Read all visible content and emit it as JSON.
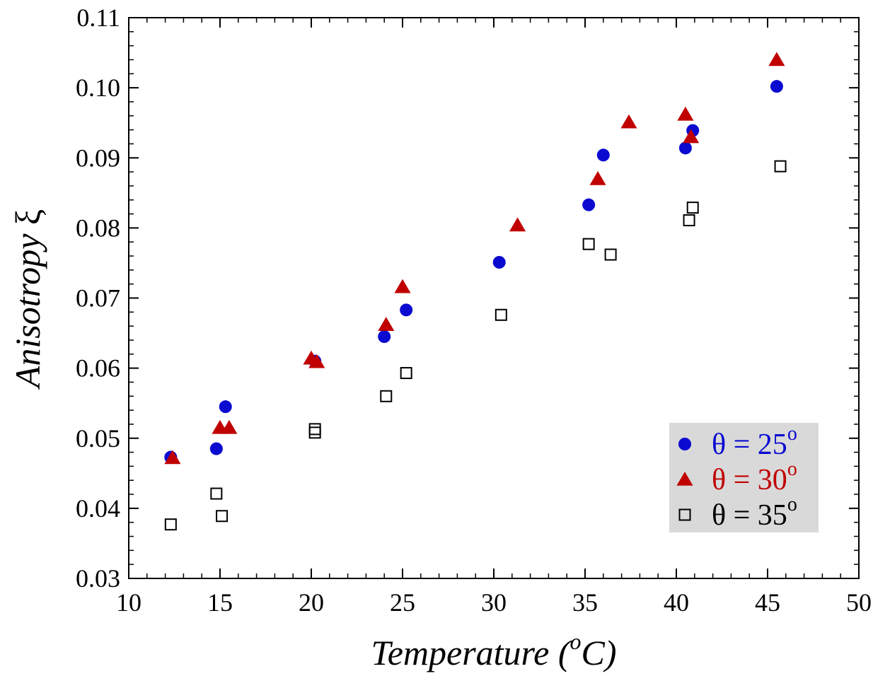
{
  "chart_data": {
    "type": "scatter",
    "xlabel": "Temperature (",
    "xlabel_sup": "o",
    "xlabel_tail": "C)",
    "ylabel": "Anisotropy",
    "ylabel_symbol": "ξ",
    "xlim": [
      10,
      50
    ],
    "ylim": [
      0.03,
      0.11
    ],
    "x_ticks": [
      "10",
      "15",
      "20",
      "25",
      "30",
      "35",
      "40",
      "45",
      "50"
    ],
    "y_ticks": [
      "0.03",
      "0.04",
      "0.05",
      "0.06",
      "0.07",
      "0.08",
      "0.09",
      "0.10",
      "0.11"
    ],
    "grid": false,
    "legend_position": "bottom-right",
    "legend_background": "#d9d9d9",
    "series": [
      {
        "name": "θ = 25",
        "name_sup": "o",
        "marker": "circle",
        "color": "#0a0ad0",
        "x": [
          12.3,
          14.8,
          15.3,
          20.2,
          24.0,
          25.2,
          30.3,
          35.2,
          36.0,
          40.5,
          40.9,
          45.5
        ],
        "y": [
          0.0473,
          0.0485,
          0.0545,
          0.061,
          0.0645,
          0.0683,
          0.0751,
          0.0833,
          0.0904,
          0.0914,
          0.0939,
          0.1002
        ]
      },
      {
        "name": "θ = 30",
        "name_sup": "o",
        "marker": "triangle",
        "color": "#c00000",
        "x": [
          12.4,
          15.0,
          15.5,
          20.0,
          20.3,
          24.1,
          25.0,
          31.3,
          35.7,
          37.4,
          40.5,
          40.8,
          45.5
        ],
        "y": [
          0.0472,
          0.0515,
          0.0515,
          0.0614,
          0.0609,
          0.0662,
          0.0716,
          0.0804,
          0.087,
          0.0951,
          0.0962,
          0.093,
          0.104
        ]
      },
      {
        "name": "θ = 35",
        "name_sup": "o",
        "marker": "square",
        "color": "#000000",
        "x": [
          12.3,
          14.8,
          15.1,
          20.2,
          20.2,
          24.1,
          25.2,
          30.4,
          35.2,
          36.4,
          40.7,
          40.9,
          45.7
        ],
        "y": [
          0.0377,
          0.0421,
          0.0389,
          0.0513,
          0.0508,
          0.056,
          0.0593,
          0.0676,
          0.0777,
          0.0762,
          0.0811,
          0.0829,
          0.0888
        ]
      }
    ]
  }
}
